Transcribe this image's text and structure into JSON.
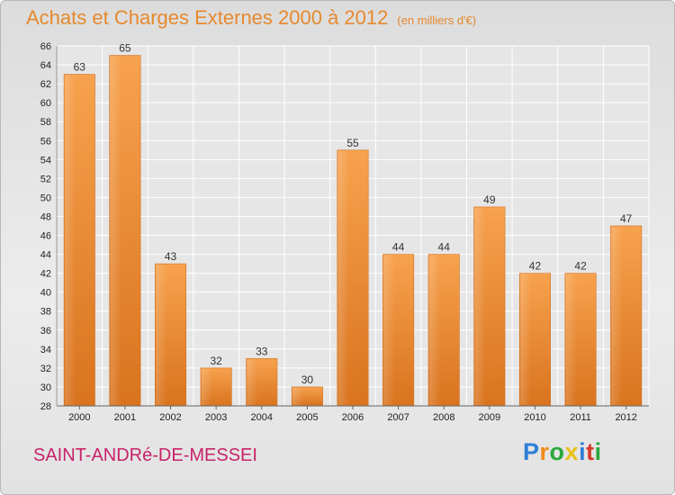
{
  "chart_data": {
    "type": "bar",
    "title": "Achats et Charges Externes 2000 à 2012",
    "subtitle": "(en milliers d'€)",
    "categories": [
      "2000",
      "2001",
      "2002",
      "2003",
      "2004",
      "2005",
      "2006",
      "2007",
      "2008",
      "2009",
      "2010",
      "2011",
      "2012"
    ],
    "values": [
      63,
      65,
      43,
      32,
      33,
      30,
      55,
      44,
      44,
      49,
      42,
      42,
      47
    ],
    "ylim": [
      28,
      66
    ],
    "yticks": [
      28,
      30,
      32,
      34,
      36,
      38,
      40,
      42,
      44,
      46,
      48,
      50,
      52,
      54,
      56,
      58,
      60,
      62,
      64,
      66
    ],
    "grid": true,
    "bar_color": "#f0913a"
  },
  "footer": {
    "city": "SAINT-ANDRé-DE-MESSEI",
    "logo": {
      "letters": [
        "P",
        "r",
        "o",
        "x",
        "i",
        "t",
        "i"
      ],
      "colors": [
        "#2e7fd6",
        "#f08c1a",
        "#2aa83a",
        "#e8c21a",
        "#2e7fd6",
        "#d63a2a",
        "#2aa83a"
      ]
    }
  }
}
